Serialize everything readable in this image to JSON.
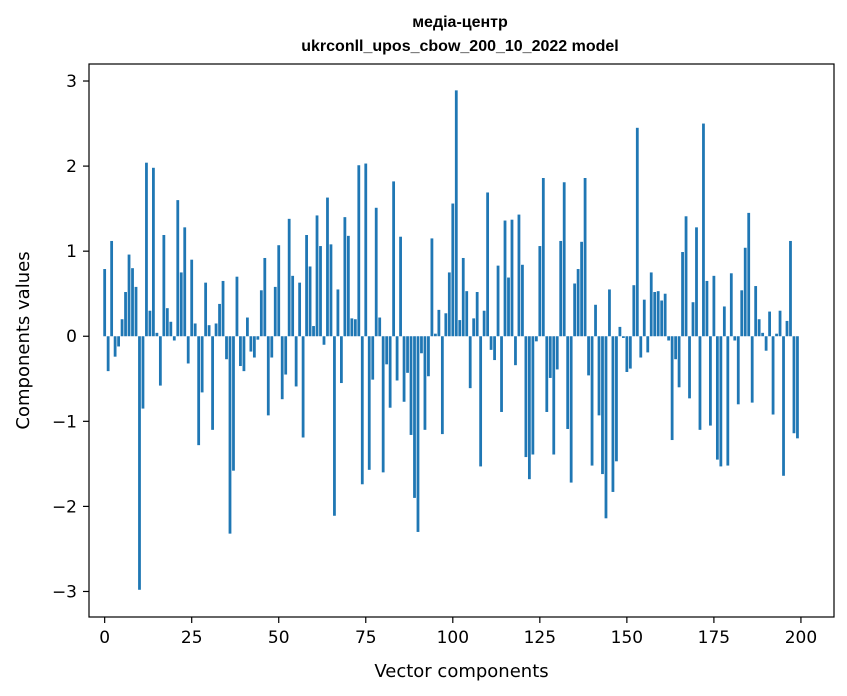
{
  "chart_data": {
    "type": "bar",
    "title_lines": [
      "медіа-центр",
      "ukrconll_upos_cbow_200_10_2022 model"
    ],
    "xlabel": "Vector components",
    "ylabel": "Components values",
    "xlim": [
      -4.5,
      209.5
    ],
    "ylim": [
      -3.3,
      3.2
    ],
    "xticks": [
      0,
      25,
      50,
      75,
      100,
      125,
      150,
      175,
      200
    ],
    "yticks": [
      -3,
      -2,
      -1,
      0,
      1,
      2,
      3
    ],
    "grid": false,
    "bar_color": "#1f77b4",
    "x": [
      0,
      1,
      2,
      3,
      4,
      5,
      6,
      7,
      8,
      9,
      10,
      11,
      12,
      13,
      14,
      15,
      16,
      17,
      18,
      19,
      20,
      21,
      22,
      23,
      24,
      25,
      26,
      27,
      28,
      29,
      30,
      31,
      32,
      33,
      34,
      35,
      36,
      37,
      38,
      39,
      40,
      41,
      42,
      43,
      44,
      45,
      46,
      47,
      48,
      49,
      50,
      51,
      52,
      53,
      54,
      55,
      56,
      57,
      58,
      59,
      60,
      61,
      62,
      63,
      64,
      65,
      66,
      67,
      68,
      69,
      70,
      71,
      72,
      73,
      74,
      75,
      76,
      77,
      78,
      79,
      80,
      81,
      82,
      83,
      84,
      85,
      86,
      87,
      88,
      89,
      90,
      91,
      92,
      93,
      94,
      95,
      96,
      97,
      98,
      99,
      100,
      101,
      102,
      103,
      104,
      105,
      106,
      107,
      108,
      109,
      110,
      111,
      112,
      113,
      114,
      115,
      116,
      117,
      118,
      119,
      120,
      121,
      122,
      123,
      124,
      125,
      126,
      127,
      128,
      129,
      130,
      131,
      132,
      133,
      134,
      135,
      136,
      137,
      138,
      139,
      140,
      141,
      142,
      143,
      144,
      145,
      146,
      147,
      148,
      149,
      150,
      151,
      152,
      153,
      154,
      155,
      156,
      157,
      158,
      159,
      160,
      161,
      162,
      163,
      164,
      165,
      166,
      167,
      168,
      169,
      170,
      171,
      172,
      173,
      174,
      175,
      176,
      177,
      178,
      179,
      180,
      181,
      182,
      183,
      184,
      185,
      186,
      187,
      188,
      189,
      190,
      191,
      192,
      193,
      194,
      195,
      196,
      197,
      198,
      199
    ],
    "values": [
      0.79,
      -0.41,
      1.12,
      -0.24,
      -0.12,
      0.2,
      0.52,
      0.96,
      0.8,
      0.58,
      -2.98,
      -0.85,
      2.04,
      0.3,
      1.98,
      0.04,
      -0.58,
      1.19,
      0.33,
      0.17,
      -0.05,
      1.6,
      0.75,
      1.28,
      -0.32,
      0.9,
      0.15,
      -1.28,
      -0.66,
      0.63,
      0.13,
      -1.1,
      0.15,
      0.38,
      0.65,
      -0.27,
      -2.32,
      -1.58,
      0.7,
      -0.35,
      -0.41,
      0.22,
      -0.18,
      -0.25,
      -0.04,
      0.54,
      0.92,
      -0.93,
      -0.25,
      0.58,
      1.07,
      -0.74,
      -0.45,
      1.38,
      0.71,
      -0.59,
      0.63,
      -1.19,
      1.19,
      0.82,
      0.12,
      1.42,
      1.06,
      -0.1,
      1.63,
      1.08,
      -2.11,
      0.55,
      -0.55,
      1.4,
      1.18,
      0.21,
      0.2,
      2.01,
      -1.74,
      2.03,
      -1.57,
      -0.51,
      1.51,
      0.22,
      -1.6,
      -0.33,
      -0.84,
      1.82,
      -0.52,
      1.17,
      -0.77,
      -0.43,
      -1.16,
      -1.9,
      -2.3,
      -0.2,
      -1.1,
      -0.47,
      1.15,
      0.03,
      0.31,
      -1.15,
      0.27,
      0.75,
      1.56,
      2.89,
      0.19,
      0.92,
      0.53,
      -0.61,
      0.21,
      0.52,
      -1.53,
      0.3,
      1.69,
      -0.16,
      -0.28,
      0.83,
      -0.89,
      1.36,
      0.69,
      1.37,
      -0.34,
      1.43,
      0.84,
      -1.42,
      -1.68,
      -1.39,
      -0.06,
      1.06,
      1.86,
      -0.89,
      -0.49,
      -1.39,
      -0.39,
      1.12,
      1.81,
      -1.09,
      -1.72,
      0.62,
      0.79,
      1.11,
      1.86,
      -0.46,
      -1.52,
      0.37,
      -0.93,
      -1.62,
      -2.14,
      0.55,
      -1.83,
      -1.47,
      0.11,
      -0.02,
      -0.42,
      -0.38,
      0.6,
      2.45,
      -0.25,
      0.43,
      -0.19,
      0.75,
      0.52,
      0.53,
      0.42,
      0.5,
      -0.05,
      -1.22,
      -0.27,
      -0.6,
      0.99,
      1.41,
      -0.73,
      0.4,
      1.28,
      -1.1,
      2.5,
      0.65,
      -1.05,
      0.71,
      -1.45,
      -1.53,
      0.35,
      -1.52,
      0.74,
      -0.05,
      -0.8,
      0.54,
      1.04,
      1.45,
      -0.78,
      0.59,
      0.2,
      0.04,
      -0.17,
      0.29,
      -0.92,
      0.03,
      0.3,
      -1.64,
      0.18,
      1.12,
      -1.14,
      -1.2
    ]
  }
}
